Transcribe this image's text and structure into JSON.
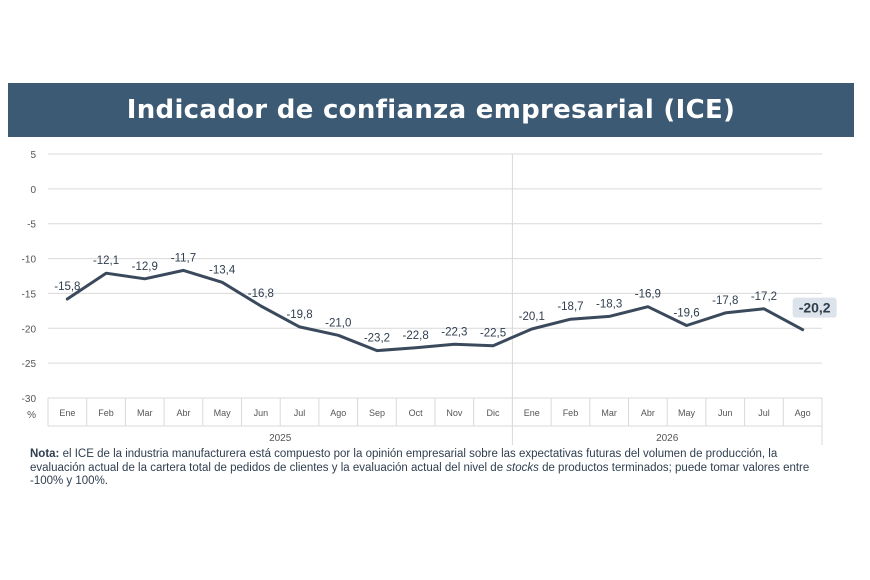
{
  "header": {
    "title": "Indicador de confianza empresarial (ICE)"
  },
  "chart_data": {
    "type": "line",
    "y_ticks": [
      "5",
      "0",
      "-5",
      "-10",
      "-15",
      "-20",
      "-25",
      "-30"
    ],
    "y_unit": "%",
    "ylim": [
      -30,
      5
    ],
    "categories": [
      "Ene",
      "Feb",
      "Mar",
      "Abr",
      "May",
      "Jun",
      "Jul",
      "Ago",
      "Sep",
      "Oct",
      "Nov",
      "Dic",
      "Ene",
      "Feb",
      "Mar",
      "Abr",
      "May",
      "Jun",
      "Jul",
      "Ago"
    ],
    "year_groups": [
      {
        "label": "2025",
        "months": 12
      },
      {
        "label": "2026",
        "months": 8
      }
    ],
    "series": [
      {
        "values": [
          -15.8,
          -12.1,
          -12.9,
          -11.7,
          -13.4,
          -16.8,
          -19.8,
          -21.0,
          -23.2,
          -22.8,
          -22.3,
          -22.5,
          -20.1,
          -18.7,
          -18.3,
          -16.9,
          -19.6,
          -17.8,
          -17.2,
          -20.2
        ]
      }
    ],
    "data_labels": [
      "-15,8",
      "-12,1",
      "-12,9",
      "-11,7",
      "-13,4",
      "-16,8",
      "-19,8",
      "-21,0",
      "-23,2",
      "-22,8",
      "-22,3",
      "-22,5",
      "-20,1",
      "-18,7",
      "-18,3",
      "-16,9",
      "-19,6",
      "-17,8",
      "-17,2",
      "-20,2"
    ],
    "highlight_last": true,
    "grid": true,
    "line_color": "#3a4a5c",
    "highlight_bg": "#dde3ea"
  },
  "note": {
    "label": "Nota:",
    "text_1": " el ICE de la industria manufacturera está compuesto por la opinión empresarial sobre las expectativas futuras del volumen de producción, la evaluación actual de la cartera total de pedidos de clientes y la evaluación actual del nivel de ",
    "text_em": "stocks",
    "text_2": " de productos terminados; puede tomar valores entre -100% y 100%."
  },
  "colors": {
    "banner": "#3d5a75",
    "grid": "#d9d9d9",
    "text": "#2f3e4e"
  }
}
